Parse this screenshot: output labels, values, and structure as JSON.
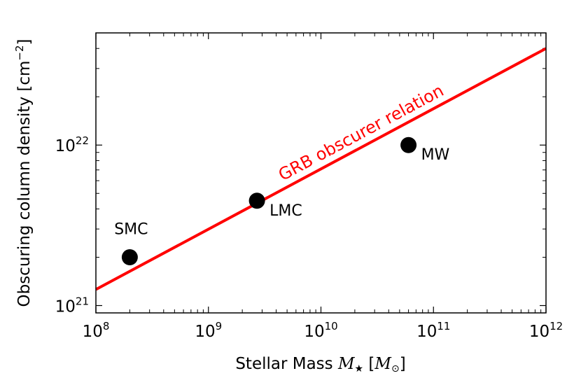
{
  "chart_data": {
    "type": "scatter",
    "xscale": "log",
    "yscale": "log",
    "xlim": [
      100000000,
      1000000000000
    ],
    "ylim": [
      900000000000000000000,
      50000000000000000000000
    ],
    "xlabel": "Stellar Mass",
    "xlabel_math": "M",
    "xlabel_math_sub": "★",
    "xlabel_unit_math": "M",
    "xlabel_unit_sub": "⊙",
    "ylabel": "Obscuring column density [cm",
    "ylabel_sup": "−2",
    "ylabel_close": "]",
    "x_ticks": [
      {
        "value": 100000000,
        "base": "10",
        "exp": "8"
      },
      {
        "value": 1000000000,
        "base": "10",
        "exp": "9"
      },
      {
        "value": 10000000000,
        "base": "10",
        "exp": "10"
      },
      {
        "value": 100000000000,
        "base": "10",
        "exp": "11"
      },
      {
        "value": 1000000000000,
        "base": "10",
        "exp": "12"
      }
    ],
    "y_ticks": [
      {
        "value": 1000000000000000000000,
        "base": "10",
        "exp": "21"
      },
      {
        "value": 10000000000000000000000,
        "base": "10",
        "exp": "22"
      }
    ],
    "points": [
      {
        "name": "SMC",
        "x": 200000000,
        "y": 2000000000000000000000,
        "label_pos": "above"
      },
      {
        "name": "LMC",
        "x": 2700000000,
        "y": 4500000000000000000000,
        "label_pos": "right"
      },
      {
        "name": "MW",
        "x": 60000000000,
        "y": 10000000000000000000000,
        "label_pos": "right"
      }
    ],
    "relation": {
      "name": "GRB obscurer relation",
      "color": "#ff0000",
      "x": [
        100000000,
        1000000000000
      ],
      "y": [
        1260000000000000000000,
        40000000000000000000000
      ]
    },
    "marker_color": "#000000",
    "grid": false,
    "legend": "none"
  }
}
